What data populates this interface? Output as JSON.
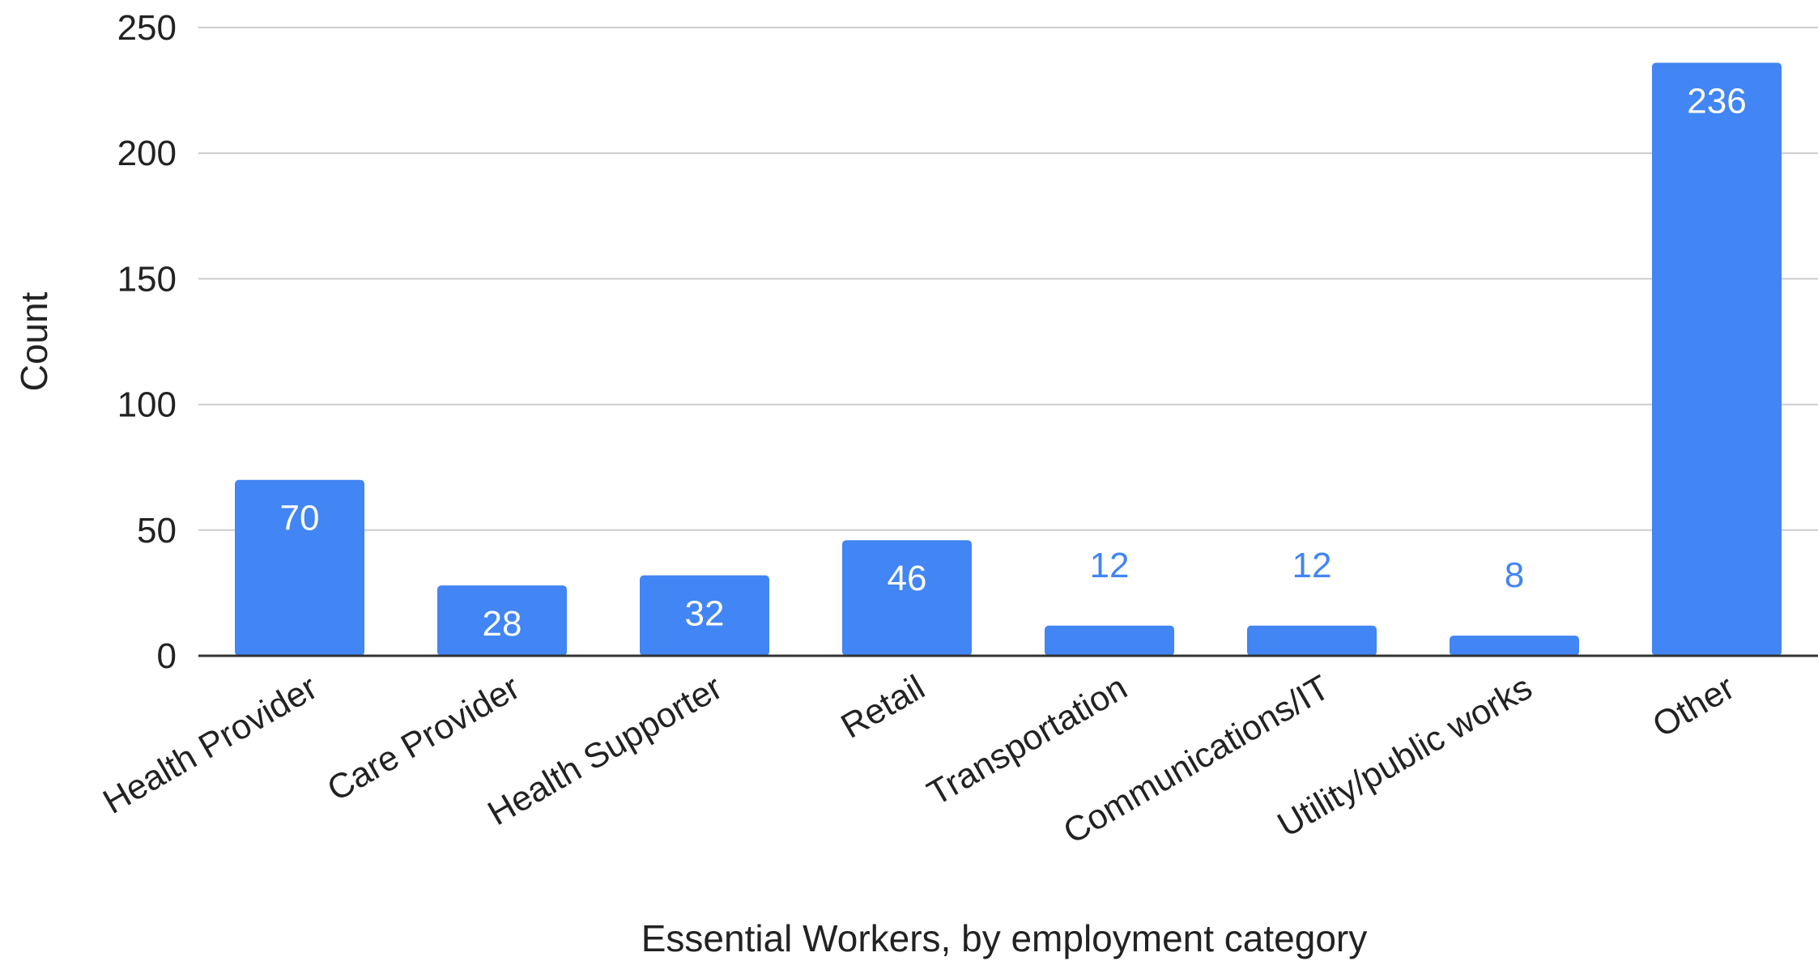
{
  "chart_data": {
    "type": "bar",
    "title": "",
    "xlabel": "Essential Workers, by employment category",
    "ylabel": "Count",
    "categories": [
      "Health Provider",
      "Care Provider",
      "Health Supporter",
      "Retail",
      "Transportation",
      "Communications/IT",
      "Utility/public works",
      "Other"
    ],
    "values": [
      70,
      28,
      32,
      46,
      12,
      12,
      8,
      236
    ],
    "ylim": [
      0,
      250
    ],
    "yticks": [
      0,
      50,
      100,
      150,
      200,
      250
    ],
    "grid": true,
    "legend": "none",
    "colors": {
      "bar": "#4285f4",
      "label_inside": "#ffffff",
      "label_outside": "#4285f4",
      "grid": "#cccccc",
      "axis": "#333333"
    }
  }
}
